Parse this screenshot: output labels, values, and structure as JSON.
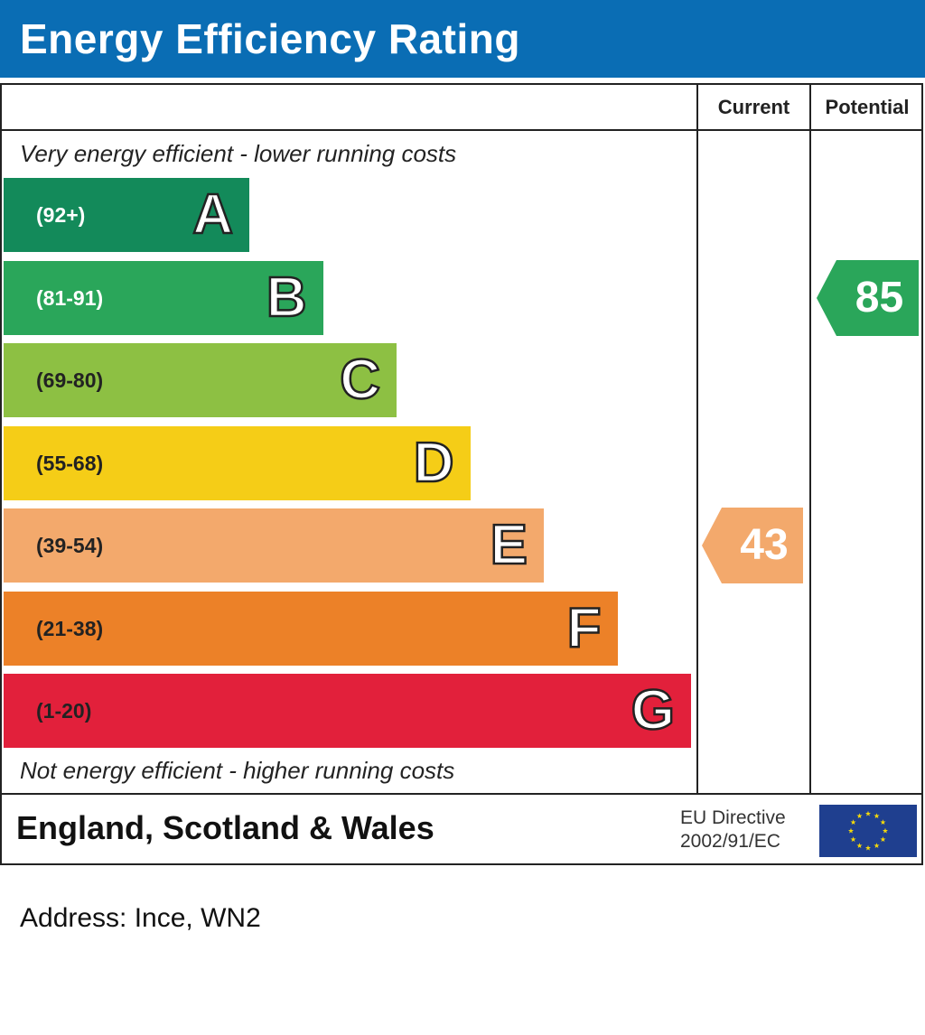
{
  "header": {
    "title": "Energy Efficiency Rating"
  },
  "columns": {
    "current": "Current",
    "potential": "Potential"
  },
  "captions": {
    "top": "Very energy efficient - lower running costs",
    "bottom": "Not energy efficient - higher running costs"
  },
  "chart_data": {
    "type": "bar",
    "title": "Energy Efficiency Rating",
    "categories": [
      "A",
      "B",
      "C",
      "D",
      "E",
      "F",
      "G"
    ],
    "ranges": [
      "(92+)",
      "(81-91)",
      "(69-80)",
      "(55-68)",
      "(39-54)",
      "(21-38)",
      "(1-20)"
    ],
    "band_min": [
      92,
      81,
      69,
      55,
      39,
      21,
      1
    ],
    "band_max": [
      100,
      91,
      80,
      68,
      54,
      38,
      20
    ],
    "colors": [
      "#138a5a",
      "#2aa65a",
      "#8dc043",
      "#f5cd17",
      "#f3a96c",
      "#ec8128",
      "#e2203b"
    ],
    "current": {
      "label": "Current",
      "value": 43,
      "band": "E",
      "color": "#f3a96c"
    },
    "potential": {
      "label": "Potential",
      "value": 85,
      "band": "B",
      "color": "#2aa65a"
    }
  },
  "footer": {
    "region": "England, Scotland & Wales",
    "directive_line1": "EU Directive",
    "directive_line2": "2002/91/EC",
    "flag": "eu-flag-icon"
  },
  "address": "Address: Ince, WN2"
}
